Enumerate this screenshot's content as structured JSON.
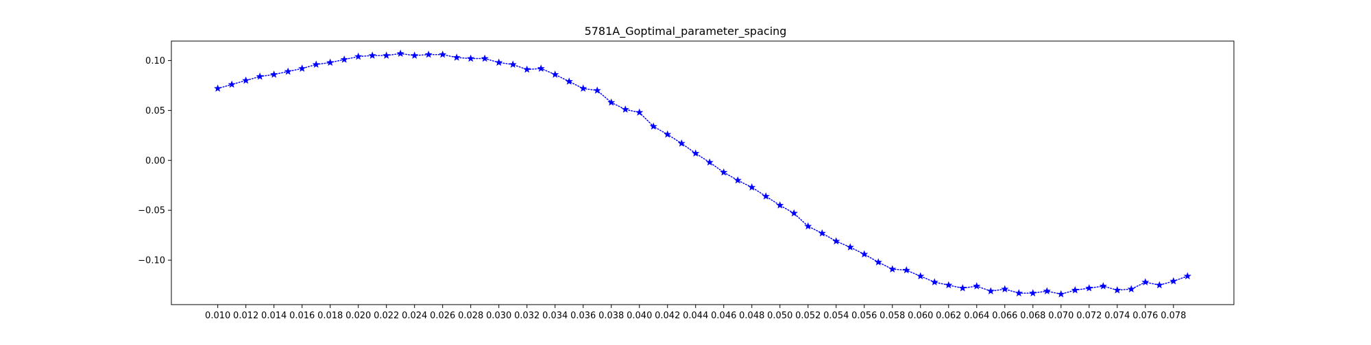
{
  "chart_data": {
    "type": "line",
    "title": "5781A_Goptimal_parameter_spacing",
    "xlabel": "",
    "ylabel": "",
    "xlim": [
      0.0067,
      0.0823
    ],
    "ylim": [
      -0.1445,
      0.1195
    ],
    "x_ticks": [
      "0.010",
      "0.012",
      "0.014",
      "0.016",
      "0.018",
      "0.020",
      "0.022",
      "0.024",
      "0.026",
      "0.028",
      "0.030",
      "0.032",
      "0.034",
      "0.036",
      "0.038",
      "0.040",
      "0.042",
      "0.044",
      "0.046",
      "0.048",
      "0.050",
      "0.052",
      "0.054",
      "0.056",
      "0.058",
      "0.060",
      "0.062",
      "0.064",
      "0.066",
      "0.068",
      "0.070",
      "0.072",
      "0.074",
      "0.076",
      "0.078"
    ],
    "x_tick_values": [
      0.01,
      0.012,
      0.014,
      0.016,
      0.018,
      0.02,
      0.022,
      0.024,
      0.026,
      0.028,
      0.03,
      0.032,
      0.034,
      0.036,
      0.038,
      0.04,
      0.042,
      0.044,
      0.046,
      0.048,
      0.05,
      0.052,
      0.054,
      0.056,
      0.058,
      0.06,
      0.062,
      0.064,
      0.066,
      0.068,
      0.07,
      0.072,
      0.074,
      0.076,
      0.078
    ],
    "y_ticks": [
      "0.10",
      "0.05",
      "0.00",
      "−0.05",
      "−0.10"
    ],
    "y_tick_values": [
      0.1,
      0.05,
      0.0,
      -0.05,
      -0.1
    ],
    "grid": false,
    "legend": "none",
    "series": [
      {
        "color": "#0000ff",
        "line_style": "dotted",
        "marker": "star",
        "x": [
          0.01,
          0.011,
          0.012,
          0.013,
          0.014,
          0.015,
          0.016,
          0.017,
          0.018,
          0.019,
          0.02,
          0.021,
          0.022,
          0.023,
          0.024,
          0.025,
          0.026,
          0.027,
          0.028,
          0.029,
          0.03,
          0.031,
          0.032,
          0.033,
          0.034,
          0.035,
          0.036,
          0.037,
          0.038,
          0.039,
          0.04,
          0.041,
          0.042,
          0.043,
          0.044,
          0.045,
          0.046,
          0.047,
          0.048,
          0.049,
          0.05,
          0.051,
          0.052,
          0.053,
          0.054,
          0.055,
          0.056,
          0.057,
          0.058,
          0.059,
          0.06,
          0.061,
          0.062,
          0.063,
          0.064,
          0.065,
          0.066,
          0.067,
          0.068,
          0.069,
          0.07,
          0.071,
          0.072,
          0.073,
          0.074,
          0.075,
          0.076,
          0.077,
          0.078,
          0.079
        ],
        "y": [
          0.072,
          0.076,
          0.08,
          0.084,
          0.086,
          0.089,
          0.092,
          0.096,
          0.098,
          0.101,
          0.104,
          0.105,
          0.105,
          0.107,
          0.105,
          0.106,
          0.106,
          0.103,
          0.102,
          0.102,
          0.098,
          0.096,
          0.091,
          0.092,
          0.086,
          0.079,
          0.072,
          0.07,
          0.058,
          0.051,
          0.048,
          0.034,
          0.026,
          0.017,
          0.007,
          -0.002,
          -0.012,
          -0.02,
          -0.027,
          -0.036,
          -0.045,
          -0.053,
          -0.066,
          -0.073,
          -0.081,
          -0.087,
          -0.094,
          -0.102,
          -0.109,
          -0.11,
          -0.116,
          -0.122,
          -0.125,
          -0.128,
          -0.126,
          -0.131,
          -0.129,
          -0.133,
          -0.133,
          -0.131,
          -0.134,
          -0.13,
          -0.128,
          -0.126,
          -0.13,
          -0.129,
          -0.122,
          -0.125,
          -0.121,
          -0.116
        ]
      }
    ]
  }
}
